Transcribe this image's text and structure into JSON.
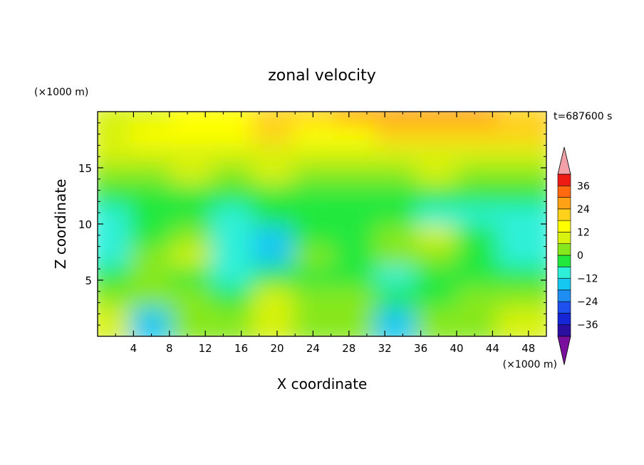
{
  "chart_data": {
    "type": "heatmap",
    "title": "zonal velocity",
    "xlabel": "X coordinate",
    "ylabel": "Z coordinate",
    "x_unit": "(×1000 m)",
    "y_unit": "(×1000 m)",
    "time_label": "t=687600 s",
    "xlim": [
      0,
      50
    ],
    "ylim": [
      0,
      20
    ],
    "x_ticks": [
      4,
      8,
      12,
      16,
      20,
      24,
      28,
      32,
      36,
      40,
      44,
      48
    ],
    "y_ticks": [
      5,
      10,
      15
    ],
    "grid": false,
    "colorbar": {
      "tick_labels": [
        36,
        24,
        12,
        0,
        -12,
        -24,
        -36
      ],
      "levels": [
        -42,
        -36,
        -30,
        -24,
        -18,
        -12,
        -6,
        0,
        6,
        12,
        18,
        24,
        30,
        36,
        42
      ],
      "colors": [
        "#7a0f9e",
        "#2a0fa0",
        "#1426d6",
        "#1e50f0",
        "#1e8ef2",
        "#15c8f2",
        "#2ef0d8",
        "#22e83c",
        "#86e81c",
        "#d7f20f",
        "#ffff00",
        "#ffd11a",
        "#ffa117",
        "#ff6a10",
        "#ee1a14",
        "#f0a0a6"
      ],
      "extend": "both"
    },
    "field_description_rows_z": [
      19.5,
      18,
      16,
      14,
      12,
      10,
      8,
      6,
      4,
      2,
      0.5
    ],
    "field_rows": [
      [
        8,
        10,
        14,
        16,
        18,
        20,
        24,
        26,
        28,
        26,
        22
      ],
      [
        8,
        12,
        14,
        16,
        18,
        14,
        16,
        20,
        22,
        20,
        18
      ],
      [
        10,
        8,
        6,
        6,
        8,
        6,
        6,
        8,
        8,
        8,
        10
      ],
      [
        2,
        4,
        6,
        4,
        6,
        2,
        2,
        4,
        6,
        4,
        4
      ],
      [
        -4,
        -2,
        -4,
        -6,
        -4,
        -2,
        -4,
        -2,
        -4,
        -6,
        -6
      ],
      [
        -8,
        -6,
        -4,
        -8,
        -6,
        -4,
        -4,
        -6,
        -8,
        -8,
        -10
      ],
      [
        -10,
        -4,
        4,
        -10,
        -14,
        -2,
        -6,
        4,
        6,
        -4,
        -12
      ],
      [
        -10,
        2,
        6,
        -12,
        -18,
        0,
        -6,
        2,
        0,
        -6,
        -10
      ],
      [
        -6,
        4,
        -2,
        -10,
        -6,
        -2,
        -4,
        -8,
        -6,
        -2,
        -4
      ],
      [
        0,
        2,
        0,
        -2,
        8,
        2,
        0,
        -6,
        -4,
        0,
        2
      ],
      [
        6,
        -14,
        2,
        4,
        6,
        4,
        2,
        -16,
        0,
        4,
        8
      ]
    ]
  }
}
